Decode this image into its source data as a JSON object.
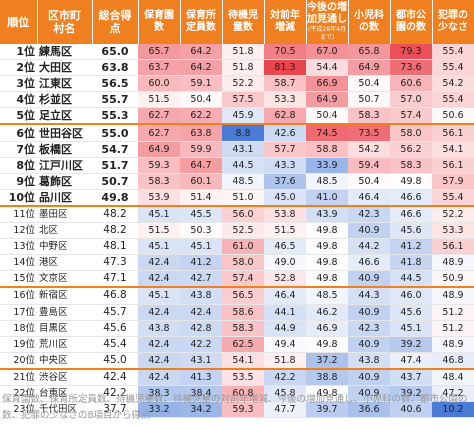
{
  "colors": {
    "header_bg": "#f07f1f",
    "high": "#e8323c",
    "low": "#3b6fd0",
    "neutral": "#ffffff"
  },
  "table": {
    "headers": [
      {
        "lines": [
          "順位"
        ]
      },
      {
        "lines": [
          "区市町",
          "村名"
        ]
      },
      {
        "lines": [
          "総合得",
          "点"
        ]
      },
      {
        "lines": [
          "保育園",
          "数"
        ]
      },
      {
        "lines": [
          "保育所",
          "定員数"
        ]
      },
      {
        "lines": [
          "待機児",
          "童数"
        ]
      },
      {
        "lines": [
          "対前年",
          "増減"
        ]
      },
      {
        "lines": [
          "今後の増",
          "加見通し"
        ],
        "note": "(平成28年4月まで)"
      },
      {
        "lines": [
          "小児科",
          "の数"
        ]
      },
      {
        "lines": [
          "都市公",
          "園の数"
        ]
      },
      {
        "lines": [
          "犯罪の",
          "少なさ"
        ]
      }
    ],
    "rows": [
      {
        "rank": "1位",
        "name": "練馬区",
        "score": "65.0",
        "values": [
          "65.7",
          "64.2",
          "51.8",
          "70.5",
          "67.0",
          "65.8",
          "79.3",
          "55.4"
        ]
      },
      {
        "rank": "2位",
        "name": "大田区",
        "score": "63.8",
        "values": [
          "63.7",
          "64.2",
          "51.8",
          "81.3",
          "54.4",
          "64.9",
          "73.6",
          "55.4"
        ]
      },
      {
        "rank": "3位",
        "name": "江東区",
        "score": "56.5",
        "values": [
          "60.0",
          "59.1",
          "52.2",
          "58.7",
          "66.9",
          "50.4",
          "60.6",
          "54.2"
        ]
      },
      {
        "rank": "4位",
        "name": "杉並区",
        "score": "55.7",
        "values": [
          "51.5",
          "50.4",
          "57.5",
          "53.3",
          "64.9",
          "50.7",
          "57.0",
          "55.4"
        ]
      },
      {
        "rank": "5位",
        "name": "足立区",
        "score": "55.3",
        "values": [
          "62.7",
          "62.2",
          "45.9",
          "62.8",
          "50.4",
          "58.3",
          "57.4",
          "50.6"
        ]
      },
      {
        "rank": "6位",
        "name": "世田谷区",
        "score": "55.0",
        "values": [
          "62.7",
          "63.8",
          "8.8",
          "42.6",
          "74.5",
          "73.5",
          "58.0",
          "56.1"
        ]
      },
      {
        "rank": "7位",
        "name": "板橋区",
        "score": "54.7",
        "values": [
          "64.9",
          "59.9",
          "43.1",
          "57.7",
          "58.8",
          "54.2",
          "56.2",
          "54.1"
        ]
      },
      {
        "rank": "8位",
        "name": "江戸川区",
        "score": "51.7",
        "values": [
          "59.3",
          "64.7",
          "44.5",
          "43.3",
          "33.9",
          "59.4",
          "58.3",
          "56.1"
        ]
      },
      {
        "rank": "9位",
        "name": "葛飾区",
        "score": "50.7",
        "values": [
          "58.3",
          "60.1",
          "48.5",
          "37.6",
          "48.5",
          "50.4",
          "49.8",
          "57.9"
        ]
      },
      {
        "rank": "10位",
        "name": "品川区",
        "score": "49.8",
        "values": [
          "53.9",
          "51.4",
          "51.0",
          "45.0",
          "41.0",
          "46.4",
          "46.6",
          "55.4"
        ]
      },
      {
        "rank": "11位",
        "name": "墨田区",
        "score": "48.2",
        "values": [
          "45.1",
          "45.5",
          "56.0",
          "53.8",
          "43.9",
          "42.3",
          "46.6",
          "52.2"
        ]
      },
      {
        "rank": "12位",
        "name": "北区",
        "score": "48.2",
        "values": [
          "51.5",
          "50.3",
          "52.5",
          "51.5",
          "49.8",
          "40.9",
          "45.6",
          "53.3"
        ]
      },
      {
        "rank": "13位",
        "name": "中野区",
        "score": "48.1",
        "values": [
          "45.1",
          "45.1",
          "61.0",
          "46.5",
          "49.8",
          "44.2",
          "41.2",
          "56.1"
        ]
      },
      {
        "rank": "14位",
        "name": "港区",
        "score": "47.3",
        "values": [
          "42.4",
          "41.2",
          "58.0",
          "49.0",
          "49.8",
          "46.6",
          "41.8",
          "48.9"
        ]
      },
      {
        "rank": "15位",
        "name": "文京区",
        "score": "47.1",
        "values": [
          "42.4",
          "42.7",
          "57.4",
          "52.8",
          "49.8",
          "40.9",
          "44.5",
          "50.9"
        ]
      },
      {
        "rank": "16位",
        "name": "新宿区",
        "score": "46.8",
        "values": [
          "45.1",
          "43.8",
          "56.5",
          "46.4",
          "48.5",
          "44.3",
          "46.0",
          "48.9"
        ]
      },
      {
        "rank": "17位",
        "name": "豊島区",
        "score": "45.7",
        "values": [
          "42.4",
          "42.4",
          "58.6",
          "44.1",
          "46.2",
          "40.9",
          "45.6",
          "51.2"
        ]
      },
      {
        "rank": "18位",
        "name": "目黒区",
        "score": "45.6",
        "values": [
          "43.8",
          "42.8",
          "58.3",
          "44.9",
          "46.9",
          "42.3",
          "45.1",
          "51.2"
        ]
      },
      {
        "rank": "19位",
        "name": "荒川区",
        "score": "45.4",
        "values": [
          "42.4",
          "42.2",
          "62.5",
          "49.4",
          "49.8",
          "40.9",
          "39.2",
          "48.9"
        ]
      },
      {
        "rank": "20位",
        "name": "中央区",
        "score": "45.0",
        "values": [
          "42.4",
          "43.1",
          "54.1",
          "51.8",
          "37.2",
          "43.8",
          "47.4",
          "46.8"
        ]
      },
      {
        "rank": "21位",
        "name": "渋谷区",
        "score": "42.4",
        "values": [
          "42.4",
          "41.3",
          "53.5",
          "42.2",
          "38.8",
          "40.9",
          "43.7",
          "48.4"
        ]
      },
      {
        "rank": "22位",
        "name": "台東区",
        "score": "42.2",
        "values": [
          "38.3",
          "38.4",
          "60.8",
          "45.8",
          "49.8",
          "40.9",
          "39.2",
          "47.2"
        ]
      },
      {
        "rank": "23位",
        "name": "千代田区",
        "score": "37.7",
        "values": [
          "33.2",
          "34.2",
          "59.3",
          "47.7",
          "39.7",
          "36.6",
          "40.6",
          "10.2"
        ]
      }
    ]
  },
  "caption": "保育園数、保育所定員数、待機児童数、待機児童の対前年増減、今後の増加見通し、小児科の数、都市公園の数、犯罪の少なさの8項目から得点"
}
